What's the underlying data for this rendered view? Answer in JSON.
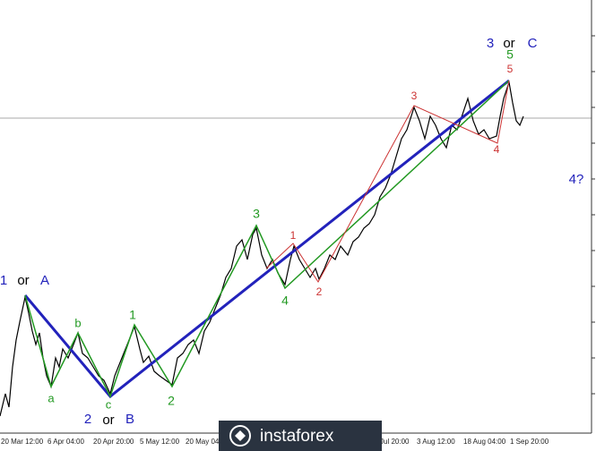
{
  "annotations": [
    {
      "text": "1"
    },
    {
      "text": "or"
    },
    {
      "text": "A"
    },
    {
      "text": "a"
    },
    {
      "text": "b"
    },
    {
      "text": "c"
    },
    {
      "text": "1"
    },
    {
      "text": "2"
    },
    {
      "text": "2"
    },
    {
      "text": "or"
    },
    {
      "text": "B"
    },
    {
      "text": "3"
    },
    {
      "text": "4"
    },
    {
      "text": "1"
    },
    {
      "text": "2"
    },
    {
      "text": "3"
    },
    {
      "text": "4"
    },
    {
      "text": "5"
    },
    {
      "text": "5"
    },
    {
      "text": "3"
    },
    {
      "text": "or"
    },
    {
      "text": "C"
    },
    {
      "text": "4?"
    }
  ],
  "x_labels": [
    "20 Mar 12:00",
    "6 Apr 04:00",
    "20 Apr 20:00",
    "5 May 12:00",
    "20 May 04",
    "Jul 20:00",
    "3 Aug 12:00",
    "18 Aug 04:00",
    "1 Sep 20:00"
  ],
  "watermark": "instaforex"
}
